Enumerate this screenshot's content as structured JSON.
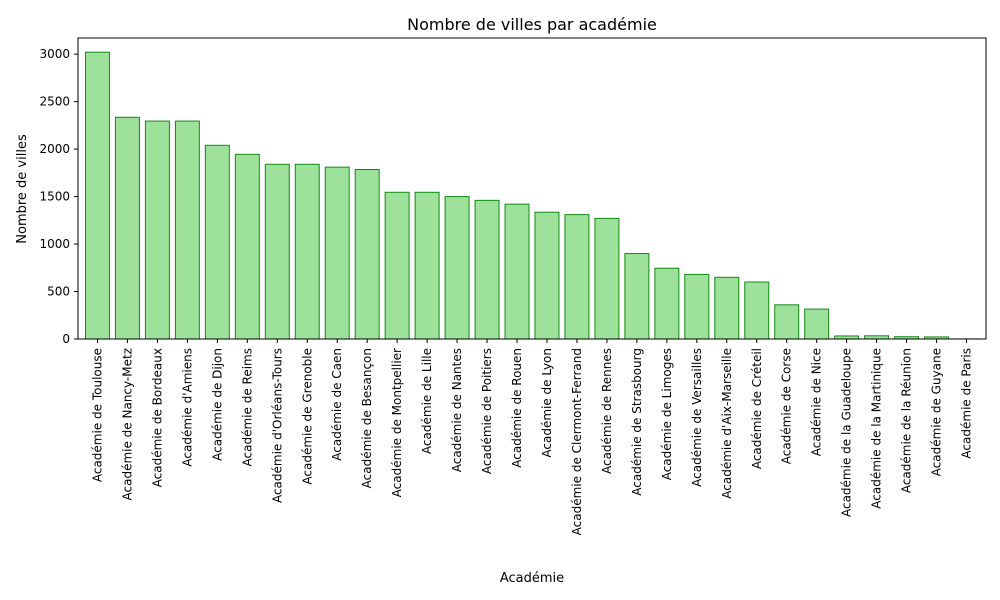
{
  "chart_data": {
    "type": "bar",
    "title": "Nombre de villes par académie",
    "xlabel": "Académie",
    "ylabel": "Nombre de villes",
    "ylim": [
      0,
      3170
    ],
    "yticks": [
      0,
      500,
      1000,
      1500,
      2000,
      2500,
      3000
    ],
    "grid": false,
    "colors": {
      "bar_fill": "#9de19a",
      "bar_edge": "#138a13"
    },
    "categories": [
      "Académie de Toulouse",
      "Académie de Nancy-Metz",
      "Académie de Bordeaux",
      "Académie d'Amiens",
      "Académie de Dijon",
      "Académie de Reims",
      "Académie d'Orléans-Tours",
      "Académie de Grenoble",
      "Académie de Caen",
      "Académie de Besançon",
      "Académie de Montpellier",
      "Académie de Lille",
      "Académie de Nantes",
      "Académie de Poitiers",
      "Académie de Rouen",
      "Académie de Lyon",
      "Académie de Clermont-Ferrand",
      "Académie de Rennes",
      "Académie de Strasbourg",
      "Académie de Limoges",
      "Académie de Versailles",
      "Académie d'Aix-Marseille",
      "Académie de Créteil",
      "Académie de Corse",
      "Académie de Nice",
      "Académie de la Guadeloupe",
      "Académie de la Martinique",
      "Académie de la Réunion",
      "Académie de Guyane",
      "Académie de Paris"
    ],
    "values": [
      3020,
      2335,
      2295,
      2295,
      2040,
      1945,
      1840,
      1840,
      1810,
      1785,
      1545,
      1545,
      1500,
      1460,
      1420,
      1335,
      1310,
      1270,
      900,
      745,
      680,
      650,
      600,
      360,
      315,
      32,
      34,
      24,
      22,
      1
    ]
  }
}
